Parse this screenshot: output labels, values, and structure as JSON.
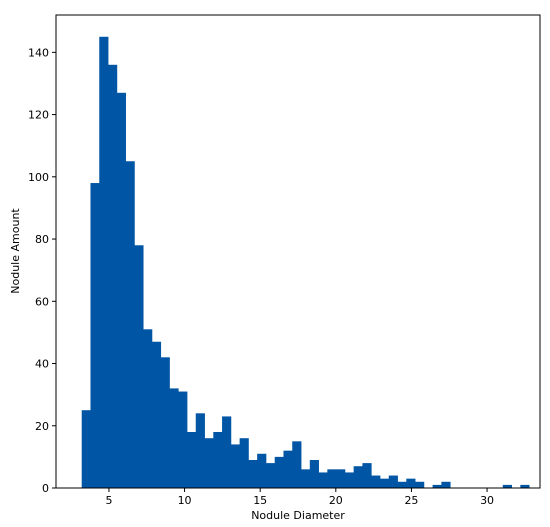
{
  "chart_data": {
    "type": "bar",
    "subtype": "histogram",
    "title": "",
    "xlabel": "Nodule Diameter",
    "ylabel": "Nodule Amount",
    "xlim": [
      1.5,
      33.5
    ],
    "ylim": [
      0,
      152
    ],
    "xticks": [
      5,
      10,
      15,
      20,
      25,
      30
    ],
    "yticks": [
      0,
      20,
      40,
      60,
      80,
      100,
      120,
      140
    ],
    "grid": false,
    "legend": "none",
    "bar_color": "#0055a4",
    "bin_start": 3.2,
    "bin_width": 0.58,
    "counts": [
      25,
      98,
      145,
      136,
      127,
      105,
      78,
      51,
      47,
      42,
      32,
      31,
      18,
      24,
      16,
      18,
      23,
      14,
      16,
      9,
      11,
      8,
      10,
      12,
      15,
      6,
      9,
      5,
      6,
      6,
      5,
      7,
      8,
      4,
      3,
      4,
      2,
      3,
      2,
      0,
      1,
      2,
      0,
      0,
      0,
      0,
      0,
      0,
      1,
      0,
      1
    ]
  }
}
